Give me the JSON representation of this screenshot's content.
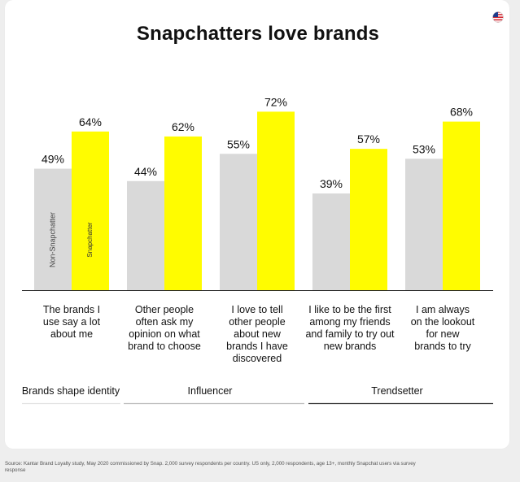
{
  "title": "Snapchatters love brands",
  "source": "Source: Kantar Brand Loyalty study, May 2020 commissioned by Snap. 2,000 survey respondents per country. US only, 2,000 respondents, age 13+, monthly Snapchat users via survey response",
  "colors": {
    "non_snapchatter": "#d9d9d9",
    "snapchatter": "#fffc00",
    "text": "#111111"
  },
  "chart_data": {
    "type": "bar",
    "title": "Snapchatters love brands",
    "categories": [
      "The brands I\nuse say a lot\nabout me",
      "Other people\noften ask my\nopinion on what\nbrand to choose",
      "I love to tell\nother people\nabout new\nbrands I have\ndiscovered",
      "I like to be the first\namong my friends\nand family to try out\nnew brands",
      "I am always\non the lookout\nfor new\nbrands to try"
    ],
    "series": [
      {
        "name": "Non-Snapchatter",
        "values": [
          49,
          44,
          55,
          39,
          53
        ]
      },
      {
        "name": "Snapchatter",
        "values": [
          64,
          62,
          72,
          57,
          68
        ]
      }
    ],
    "value_labels": {
      "Non-Snapchatter": [
        "49%",
        "44%",
        "55%",
        "39%",
        "53%"
      ],
      "Snapchatter": [
        "64%",
        "62%",
        "72%",
        "57%",
        "68%"
      ]
    },
    "groups": [
      {
        "label": "Brands shape identity"
      },
      {
        "label": "Influencer"
      },
      {
        "label": "Trendsetter"
      }
    ],
    "ylim": [
      0,
      100
    ],
    "grid": false,
    "legend": "inside-first-bars"
  }
}
